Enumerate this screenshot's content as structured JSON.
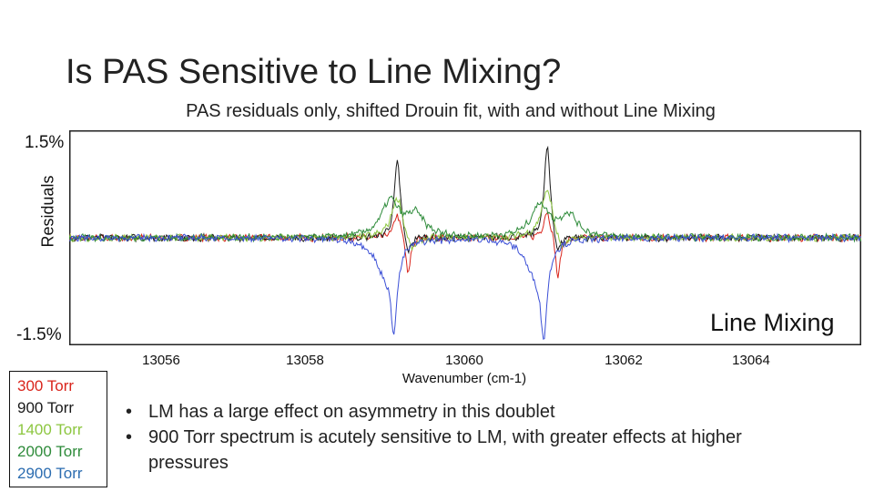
{
  "slide": {
    "title": "Is PAS Sensitive to Line Mixing?",
    "bullets": [
      "LM has a large effect on asymmetry in this doublet",
      "900 Torr spectrum is acutely sensitive to LM, with greater effects at higher pressures"
    ]
  },
  "chart_data": {
    "type": "line",
    "title": "PAS residuals only, shifted Drouin fit, with and without Line Mixing",
    "xlabel": "Wavenumber (cm-1)",
    "ylabel": "Residuals",
    "ylabel_top": "1.5%",
    "ylabel_bottom": "-1.5%",
    "ylim": [
      -1.5,
      1.5
    ],
    "xlim": [
      13055.0,
      13066.1
    ],
    "xticks": [
      13056,
      13058,
      13060,
      13062,
      13064
    ],
    "xtick_labels": [
      "13056",
      "13058",
      "13060",
      "13062",
      "13064"
    ],
    "annotation": "Line Mixing",
    "grid": false,
    "line_centers": [
      13059.6,
      13061.7
    ],
    "series": [
      {
        "name": "300 Torr",
        "color": "#d9251c",
        "peaks": [
          [
            13059.6,
            0.35,
            0.12
          ],
          [
            13059.75,
            -0.55,
            0.08
          ],
          [
            13061.7,
            0.4,
            0.12
          ],
          [
            13061.85,
            -0.6,
            0.08
          ]
        ]
      },
      {
        "name": "900 Torr",
        "color": "#1a1a1a",
        "peaks": [
          [
            13059.6,
            1.1,
            0.1
          ],
          [
            13059.75,
            -0.3,
            0.1
          ],
          [
            13061.7,
            1.3,
            0.1
          ],
          [
            13061.85,
            -0.3,
            0.1
          ]
        ]
      },
      {
        "name": "1400 Torr",
        "color": "#8cc63f",
        "peaks": [
          [
            13059.6,
            0.6,
            0.2
          ],
          [
            13059.8,
            -0.25,
            0.2
          ],
          [
            13061.7,
            0.7,
            0.2
          ],
          [
            13061.9,
            -0.25,
            0.2
          ]
        ]
      },
      {
        "name": "2000 Torr",
        "color": "#2e8b3a",
        "peaks": [
          [
            13059.5,
            0.5,
            0.3
          ],
          [
            13059.85,
            0.3,
            0.3
          ],
          [
            13061.6,
            0.45,
            0.3
          ],
          [
            13062.0,
            0.3,
            0.3
          ]
        ]
      },
      {
        "name": "2900 Torr",
        "color": "#3b4fd6",
        "peaks": [
          [
            13059.55,
            -1.1,
            0.12
          ],
          [
            13059.4,
            -0.4,
            0.3
          ],
          [
            13061.65,
            -1.2,
            0.12
          ],
          [
            13061.5,
            -0.4,
            0.3
          ]
        ]
      }
    ]
  }
}
